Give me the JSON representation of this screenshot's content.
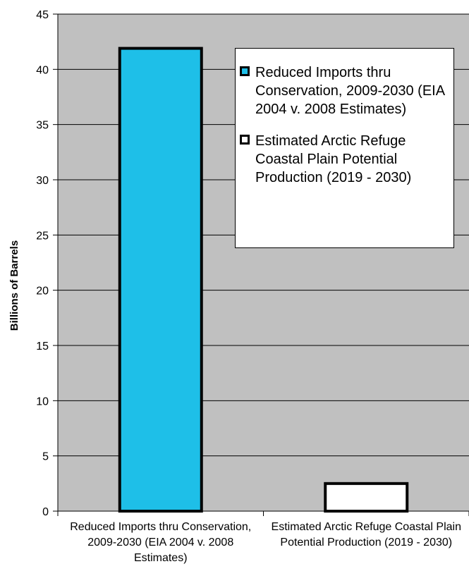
{
  "chart_data": {
    "type": "bar",
    "title": "",
    "xlabel": "",
    "ylabel": "Billions of Barrels",
    "ylim": [
      0,
      45
    ],
    "ytick_step": 5,
    "yticks": [
      "0",
      "5",
      "10",
      "15",
      "20",
      "25",
      "30",
      "35",
      "40",
      "45"
    ],
    "grid": true,
    "legend_position": "top-right",
    "plot_background": "#c0c0c0",
    "categories": [
      "Reduced Imports thru Conservation, 2009-2030 (EIA 2004 v. 2008 Estimates)",
      "Estimated Arctic Refuge Coastal Plain Potential Production (2019 - 2030)"
    ],
    "values": [
      41.9,
      2.5
    ],
    "colors": [
      "#1ebfe8",
      "#ffffff"
    ],
    "legend": [
      {
        "label": "Reduced Imports thru Conservation, 2009-2030 (EIA 2004 v. 2008 Estimates)",
        "color": "#1ebfe8"
      },
      {
        "label": "Estimated Arctic Refuge Coastal Plain Potential Production (2019 - 2030)",
        "color": "#ffffff"
      }
    ]
  }
}
